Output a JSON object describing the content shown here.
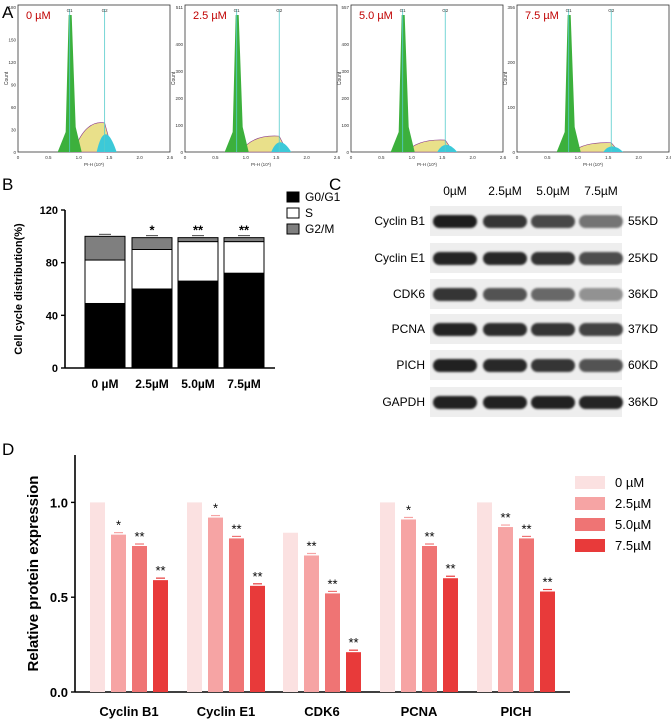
{
  "panel_a": {
    "letter": "A",
    "histograms": [
      {
        "label": "0 µM",
        "y_ticks": [
          "0",
          "30",
          "60",
          "90",
          "120",
          "150"
        ],
        "y_top": "180"
      },
      {
        "label": "2.5 µM",
        "y_ticks": [
          "0",
          "100",
          "200",
          "300",
          "400"
        ],
        "y_top": "511"
      },
      {
        "label": "5.0 µM",
        "y_ticks": [
          "0",
          "100",
          "200",
          "300",
          "400"
        ],
        "y_top": "557"
      },
      {
        "label": "7.5 µM",
        "y_ticks": [
          "0",
          "100",
          "200"
        ],
        "y_top": "356"
      }
    ],
    "gate1": "G1",
    "gate2": "G2",
    "y_axis_label": "Count",
    "x_axis_label": "PI-H (10⁵)",
    "x_ticks": [
      "0",
      "0.5",
      "1.0",
      "1.5",
      "2.0",
      "2.6"
    ]
  },
  "panel_b": {
    "letter": "B",
    "chart_data": {
      "type": "bar",
      "stacked": true,
      "categories": [
        "0 µM",
        "2.5µM",
        "5.0µM",
        "7.5µM"
      ],
      "series": [
        {
          "name": "G0/G1",
          "values": [
            49,
            60,
            66,
            72
          ],
          "color": "#000000"
        },
        {
          "name": "S",
          "values": [
            33,
            30,
            30,
            24
          ],
          "color": "#ffffff"
        },
        {
          "name": "G2/M",
          "values": [
            18,
            9,
            3,
            3
          ],
          "color": "#7f7f7f"
        }
      ],
      "significance": [
        "",
        "*",
        "**",
        "**"
      ],
      "ylabel": "Cell cycle distribution(%)",
      "ylim": [
        0,
        120
      ],
      "y_ticks": [
        "0",
        "40",
        "80",
        "120"
      ]
    }
  },
  "panel_c": {
    "letter": "C",
    "lanes": [
      "0µM",
      "2.5µM",
      "5.0µM",
      "7.5µM"
    ],
    "proteins": [
      {
        "name": "Cyclin B1",
        "size": "55KD",
        "intensity": [
          0.95,
          0.8,
          0.68,
          0.42
        ]
      },
      {
        "name": "Cyclin E1",
        "size": "25KD",
        "intensity": [
          0.9,
          0.88,
          0.82,
          0.66
        ]
      },
      {
        "name": "CDK6",
        "size": "36KD",
        "intensity": [
          0.8,
          0.62,
          0.48,
          0.22
        ]
      },
      {
        "name": "PCNA",
        "size": "37KD",
        "intensity": [
          0.9,
          0.85,
          0.8,
          0.72
        ]
      },
      {
        "name": "PICH",
        "size": "60KD",
        "intensity": [
          0.92,
          0.88,
          0.8,
          0.62
        ]
      },
      {
        "name": "GAPDH",
        "size": "36KD",
        "intensity": [
          0.92,
          0.92,
          0.92,
          0.9
        ]
      }
    ]
  },
  "panel_d": {
    "letter": "D",
    "chart_data": {
      "type": "bar",
      "categories": [
        "Cyclin B1",
        "Cyclin E1",
        "CDK6",
        "PCNA",
        "PICH"
      ],
      "series": [
        {
          "name": "0 µM",
          "values": [
            1.0,
            1.0,
            0.84,
            1.0,
            1.0
          ],
          "color": "#fbe1e1",
          "sig": [
            "",
            "",
            "",
            "",
            ""
          ]
        },
        {
          "name": "2.5µM",
          "values": [
            0.83,
            0.92,
            0.72,
            0.91,
            0.87
          ],
          "color": "#f6a4a4",
          "sig": [
            "*",
            "*",
            "**",
            "*",
            "**"
          ]
        },
        {
          "name": "5.0µM",
          "values": [
            0.77,
            0.81,
            0.52,
            0.77,
            0.81
          ],
          "color": "#ef7474",
          "sig": [
            "**",
            "**",
            "**",
            "**",
            "**"
          ]
        },
        {
          "name": "7.5µM",
          "values": [
            0.59,
            0.56,
            0.21,
            0.6,
            0.53
          ],
          "color": "#e83a3a",
          "sig": [
            "**",
            "**",
            "**",
            "**",
            "**"
          ]
        }
      ],
      "ylabel": "Relative protein expression",
      "ylim": [
        0,
        1.25
      ],
      "y_ticks": [
        "0.0",
        "0.5",
        "1.0"
      ]
    }
  }
}
